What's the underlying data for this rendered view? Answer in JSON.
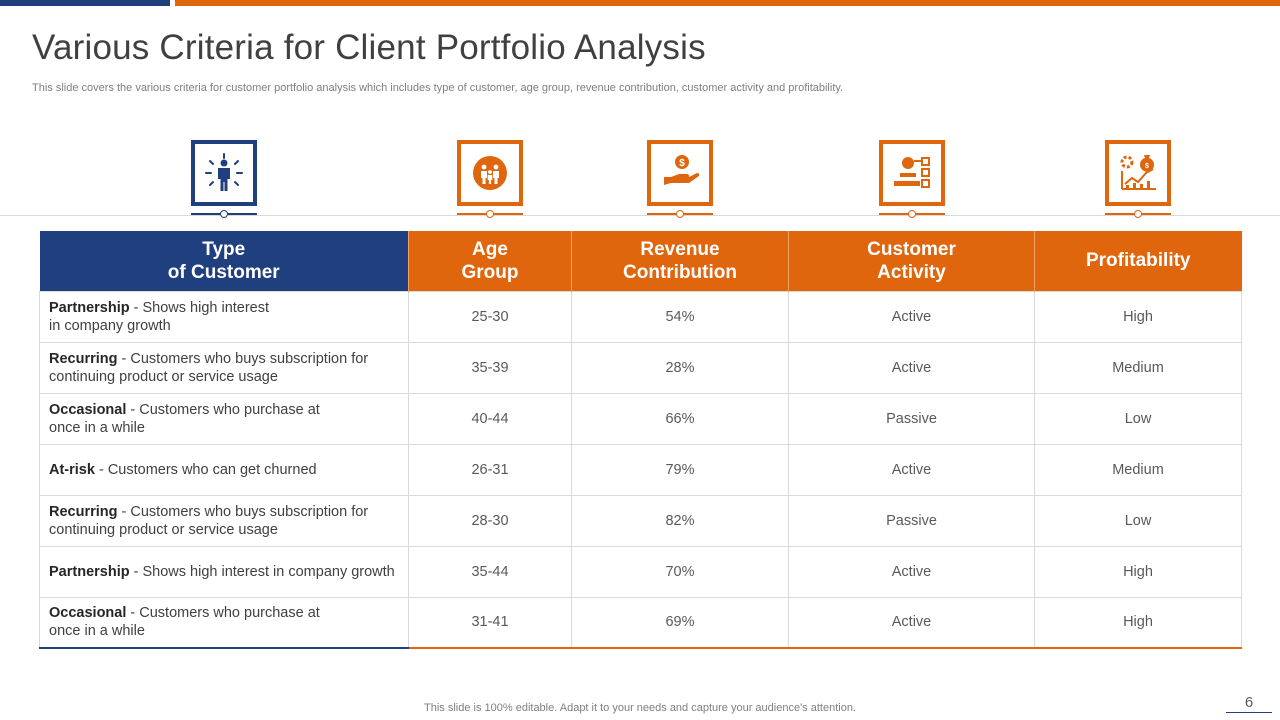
{
  "slide": {
    "title": "Various Criteria for Client Portfolio Analysis",
    "subtitle": "This slide covers the various criteria for customer portfolio analysis which includes type of customer, age group, revenue contribution, customer activity and profitability.",
    "footer": "This slide is 100% editable. Adapt it to your needs and capture your audience's attention.",
    "page_number": "6"
  },
  "colors": {
    "blue": "#1f3f7f",
    "orange": "#e0660e"
  },
  "icons": [
    "people-network-icon",
    "group-icon",
    "money-hand-icon",
    "customer-activity-icon",
    "profit-growth-icon"
  ],
  "table": {
    "headers": [
      {
        "line1": "Type",
        "line2": "of Customer"
      },
      {
        "line1": "Age",
        "line2": "Group"
      },
      {
        "line1": "Revenue",
        "line2": "Contribution"
      },
      {
        "line1": "Customer",
        "line2": "Activity"
      },
      {
        "line1": "Profitability",
        "line2": ""
      }
    ],
    "rows": [
      {
        "type": "Partnership",
        "desc": " - Shows high interest",
        "desc2": "in company growth",
        "age": "25-30",
        "revenue": "54%",
        "activity": "Active",
        "profit": "High"
      },
      {
        "type": "Recurring",
        "desc": " - Customers who buys subscription for",
        "desc2": "continuing product or service usage",
        "age": "35-39",
        "revenue": "28%",
        "activity": "Active",
        "profit": "Medium"
      },
      {
        "type": "Occasional",
        "desc": " - Customers who purchase at",
        "desc2": "once in a while",
        "age": "40-44",
        "revenue": "66%",
        "activity": "Passive",
        "profit": "Low"
      },
      {
        "type": "At-risk",
        "desc": " - Customers who can get churned",
        "desc2": "",
        "age": "26-31",
        "revenue": "79%",
        "activity": "Active",
        "profit": "Medium"
      },
      {
        "type": "Recurring",
        "desc": " - Customers who buys subscription for",
        "desc2": "continuing product or service usage",
        "age": "28-30",
        "revenue": "82%",
        "activity": "Passive",
        "profit": "Low"
      },
      {
        "type": "Partnership",
        "desc": " - Shows high interest in company growth",
        "desc2": "",
        "age": "35-44",
        "revenue": "70%",
        "activity": "Active",
        "profit": "High"
      },
      {
        "type": "Occasional",
        "desc": " - Customers who purchase at",
        "desc2": "once in a while",
        "age": "31-41",
        "revenue": "69%",
        "activity": "Active",
        "profit": "High"
      }
    ]
  }
}
